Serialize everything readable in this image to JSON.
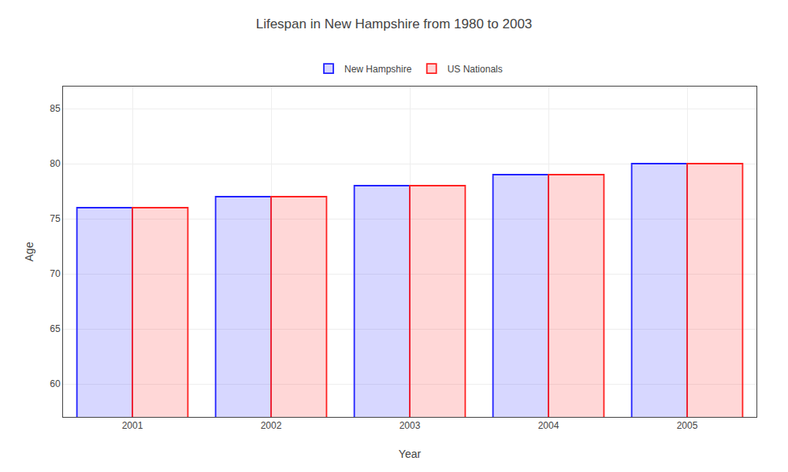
{
  "chart_data": {
    "type": "bar",
    "title": "Lifespan in New Hampshire from 1980 to 2003",
    "x_label": "Year",
    "y_label": "Age",
    "categories": [
      "2001",
      "2002",
      "2003",
      "2004",
      "2005"
    ],
    "series": [
      {
        "name": "New Hampshire",
        "color": "#2222ff",
        "values": [
          76,
          77,
          78,
          79,
          80
        ]
      },
      {
        "name": "US Nationals",
        "color": "#ff2222",
        "values": [
          76,
          77,
          78,
          79,
          80
        ]
      }
    ],
    "ylim": [
      57,
      87
    ],
    "yticks": [
      60,
      65,
      70,
      75,
      80,
      85
    ],
    "grid": true,
    "legend": "top"
  }
}
